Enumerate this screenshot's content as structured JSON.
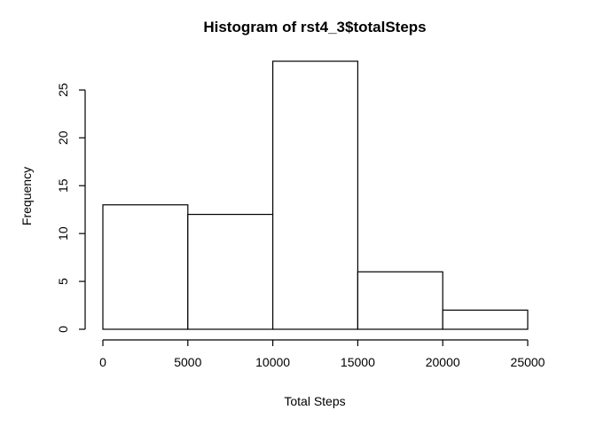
{
  "chart_data": {
    "type": "bar",
    "title": "Histogram of rst4_3$totalSteps",
    "xlabel": "Total Steps",
    "ylabel": "Frequency",
    "bins": [
      {
        "from": 0,
        "to": 5000,
        "count": 13
      },
      {
        "from": 5000,
        "to": 10000,
        "count": 12
      },
      {
        "from": 10000,
        "to": 15000,
        "count": 28
      },
      {
        "from": 15000,
        "to": 20000,
        "count": 6
      },
      {
        "from": 20000,
        "to": 25000,
        "count": 2
      }
    ],
    "xlim": [
      0,
      25000
    ],
    "ylim": [
      0,
      28
    ],
    "x_ticks": [
      0,
      5000,
      10000,
      15000,
      20000,
      25000
    ],
    "y_ticks": [
      0,
      5,
      10,
      15,
      20,
      25
    ],
    "grid": false
  }
}
